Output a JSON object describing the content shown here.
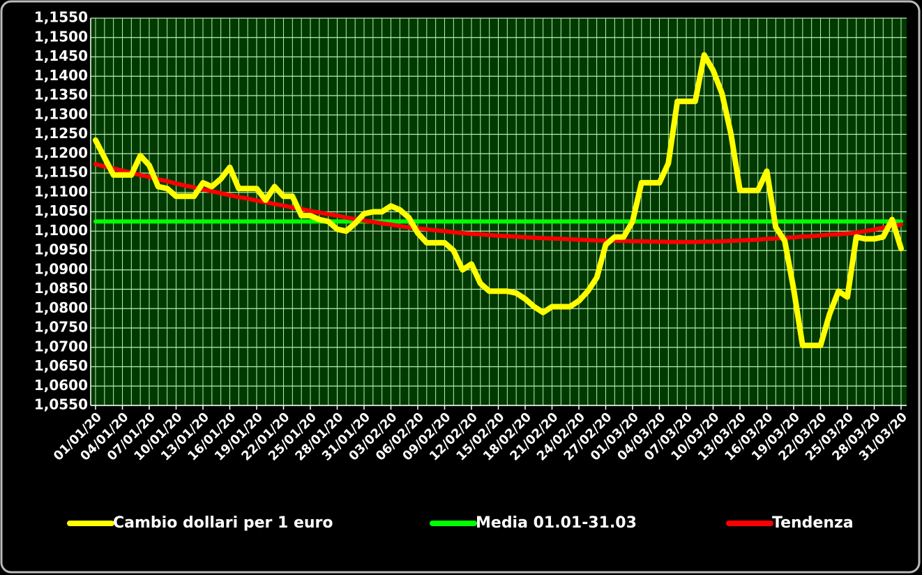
{
  "chart_data": {
    "type": "line",
    "categories": [
      "01/01/20",
      null,
      null,
      "04/01/20",
      null,
      null,
      "07/01/20",
      null,
      null,
      "10/01/20",
      null,
      null,
      "13/01/20",
      null,
      null,
      "16/01/20",
      null,
      null,
      "19/01/20",
      null,
      null,
      "22/01/20",
      null,
      null,
      "25/01/20",
      null,
      null,
      "28/01/20",
      null,
      null,
      "31/01/20",
      null,
      null,
      "03/02/20",
      null,
      null,
      "06/02/20",
      null,
      null,
      "09/02/20",
      null,
      null,
      "12/02/20",
      null,
      null,
      "15/02/20",
      null,
      null,
      "18/02/20",
      null,
      null,
      "21/02/20",
      null,
      null,
      "24/02/20",
      null,
      null,
      "27/02/20",
      null,
      null,
      "01/03/20",
      null,
      null,
      "04/03/20",
      null,
      null,
      "07/03/20",
      null,
      null,
      "10/03/20",
      null,
      null,
      "13/03/20",
      null,
      null,
      "16/03/20",
      null,
      null,
      "19/03/20",
      null,
      null,
      "22/03/20",
      null,
      null,
      "25/03/20",
      null,
      null,
      "28/03/20",
      null,
      null,
      "31/03/20"
    ],
    "series": [
      {
        "name": "Cambio dollari per 1 euro",
        "color": "#ffff00",
        "values": [
          1.1235,
          1.119,
          1.1145,
          1.1145,
          1.1145,
          1.1195,
          1.117,
          1.1115,
          1.111,
          1.109,
          1.109,
          1.109,
          1.1125,
          1.1115,
          1.1135,
          1.1165,
          1.111,
          1.111,
          1.111,
          1.108,
          1.1115,
          1.109,
          1.109,
          1.104,
          1.104,
          1.103,
          1.1025,
          1.1005,
          1.1,
          1.102,
          1.1045,
          1.105,
          1.105,
          1.1065,
          1.1055,
          1.1035,
          1.0995,
          1.097,
          1.097,
          1.097,
          1.095,
          1.09,
          1.0915,
          1.0865,
          1.0845,
          1.0845,
          1.0845,
          1.084,
          1.0825,
          1.0805,
          1.079,
          1.0805,
          1.0805,
          1.0805,
          1.082,
          1.0845,
          1.088,
          1.0965,
          1.0985,
          1.0985,
          1.1025,
          1.1125,
          1.1125,
          1.1125,
          1.1175,
          1.1335,
          1.1335,
          1.1335,
          1.1455,
          1.1415,
          1.1355,
          1.125,
          1.1105,
          1.1105,
          1.1105,
          1.1155,
          1.101,
          1.0975,
          1.085,
          1.0705,
          1.0705,
          1.0705,
          1.0785,
          1.0845,
          1.083,
          1.0985,
          1.098,
          1.098,
          1.0985,
          1.103,
          1.0955
        ]
      },
      {
        "name": "Media 01.01-31.03",
        "color": "#00ff00",
        "values": [
          1.1025,
          1.1025,
          1.1025,
          1.1025,
          1.1025,
          1.1025,
          1.1025,
          1.1025,
          1.1025,
          1.1025,
          1.1025,
          1.1025,
          1.1025,
          1.1025,
          1.1025,
          1.1025,
          1.1025,
          1.1025,
          1.1025,
          1.1025,
          1.1025,
          1.1025,
          1.1025,
          1.1025,
          1.1025,
          1.1025,
          1.1025,
          1.1025,
          1.1025,
          1.1025,
          1.1025,
          1.1025,
          1.1025,
          1.1025,
          1.1025,
          1.1025,
          1.1025,
          1.1025,
          1.1025,
          1.1025,
          1.1025,
          1.1025,
          1.1025,
          1.1025,
          1.1025,
          1.1025,
          1.1025,
          1.1025,
          1.1025,
          1.1025,
          1.1025,
          1.1025,
          1.1025,
          1.1025,
          1.1025,
          1.1025,
          1.1025,
          1.1025,
          1.1025,
          1.1025,
          1.1025,
          1.1025,
          1.1025,
          1.1025,
          1.1025,
          1.1025,
          1.1025,
          1.1025,
          1.1025,
          1.1025,
          1.1025,
          1.1025,
          1.1025,
          1.1025,
          1.1025,
          1.1025,
          1.1025,
          1.1025,
          1.1025,
          1.1025,
          1.1025,
          1.1025,
          1.1025,
          1.1025,
          1.1025,
          1.1025,
          1.1025,
          1.1025,
          1.1025,
          1.1025,
          1.1025
        ]
      },
      {
        "name": "Tendenza",
        "color": "#ff0000",
        "values": [
          1.1173,
          1.1167,
          1.1162,
          1.1156,
          1.1151,
          1.1145,
          1.114,
          1.1134,
          1.1129,
          1.1123,
          1.1118,
          1.1113,
          1.1108,
          1.1103,
          1.1098,
          1.1093,
          1.1088,
          1.1084,
          1.1079,
          1.1075,
          1.107,
          1.1066,
          1.1061,
          1.1057,
          1.1052,
          1.1048,
          1.1044,
          1.104,
          1.1035,
          1.1031,
          1.1027,
          1.1024,
          1.102,
          1.1017,
          1.1013,
          1.101,
          1.1007,
          1.1005,
          1.1002,
          1.1,
          1.0997,
          1.0995,
          1.0993,
          1.0992,
          1.099,
          1.0988,
          1.0987,
          1.0986,
          1.0984,
          1.0983,
          1.0982,
          1.0981,
          1.098,
          1.0979,
          1.0978,
          1.0977,
          1.0976,
          1.0976,
          1.0975,
          1.0975,
          1.0974,
          1.0974,
          1.0973,
          1.0973,
          1.0972,
          1.0972,
          1.0972,
          1.0972,
          1.0973,
          1.0973,
          1.0974,
          1.0975,
          1.0976,
          1.0977,
          1.0978,
          1.098,
          1.0981,
          1.0983,
          1.0984,
          1.0986,
          1.0987,
          1.0989,
          1.0991,
          1.0992,
          1.0994,
          1.0996,
          1.1,
          1.1004,
          1.1009,
          1.1013,
          1.1017
        ]
      }
    ],
    "ylim": [
      1.055,
      1.155
    ],
    "yticks": [
      {
        "value": 1.055,
        "label": "1,0550"
      },
      {
        "value": 1.06,
        "label": "1,0600"
      },
      {
        "value": 1.065,
        "label": "1,0650"
      },
      {
        "value": 1.07,
        "label": "1,0700"
      },
      {
        "value": 1.075,
        "label": "1,0750"
      },
      {
        "value": 1.08,
        "label": "1,0800"
      },
      {
        "value": 1.085,
        "label": "1,0850"
      },
      {
        "value": 1.09,
        "label": "1,0900"
      },
      {
        "value": 1.095,
        "label": "1,0950"
      },
      {
        "value": 1.1,
        "label": "1,1000"
      },
      {
        "value": 1.105,
        "label": "1,1050"
      },
      {
        "value": 1.11,
        "label": "1,1100"
      },
      {
        "value": 1.115,
        "label": "1,1150"
      },
      {
        "value": 1.12,
        "label": "1,1200"
      },
      {
        "value": 1.125,
        "label": "1,1250"
      },
      {
        "value": 1.13,
        "label": "1,1300"
      },
      {
        "value": 1.135,
        "label": "1,1350"
      },
      {
        "value": 1.14,
        "label": "1,1400"
      },
      {
        "value": 1.145,
        "label": "1,1450"
      },
      {
        "value": 1.15,
        "label": "1,1500"
      },
      {
        "value": 1.155,
        "label": "1,1550"
      }
    ],
    "grid": true,
    "legend": "bottom"
  }
}
